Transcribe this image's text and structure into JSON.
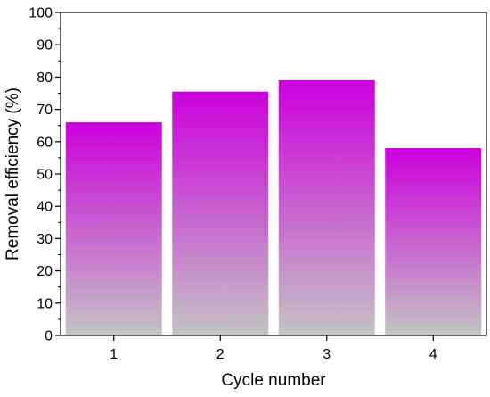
{
  "chart_data": {
    "type": "bar",
    "title": "",
    "xlabel": "Cycle number",
    "ylabel": "Removal efficiency (%)",
    "categories": [
      "1",
      "2",
      "3",
      "4"
    ],
    "values": [
      66,
      75.5,
      79,
      58
    ],
    "ylim": [
      0,
      100
    ],
    "yticks": [
      "0",
      "10",
      "20",
      "30",
      "40",
      "50",
      "60",
      "70",
      "80",
      "90",
      "100"
    ],
    "grid": false,
    "legend": "none",
    "colors": {
      "bar_top": "#cc00dd",
      "bar_bottom": "#c4c4c4",
      "axis": "#000000"
    }
  }
}
